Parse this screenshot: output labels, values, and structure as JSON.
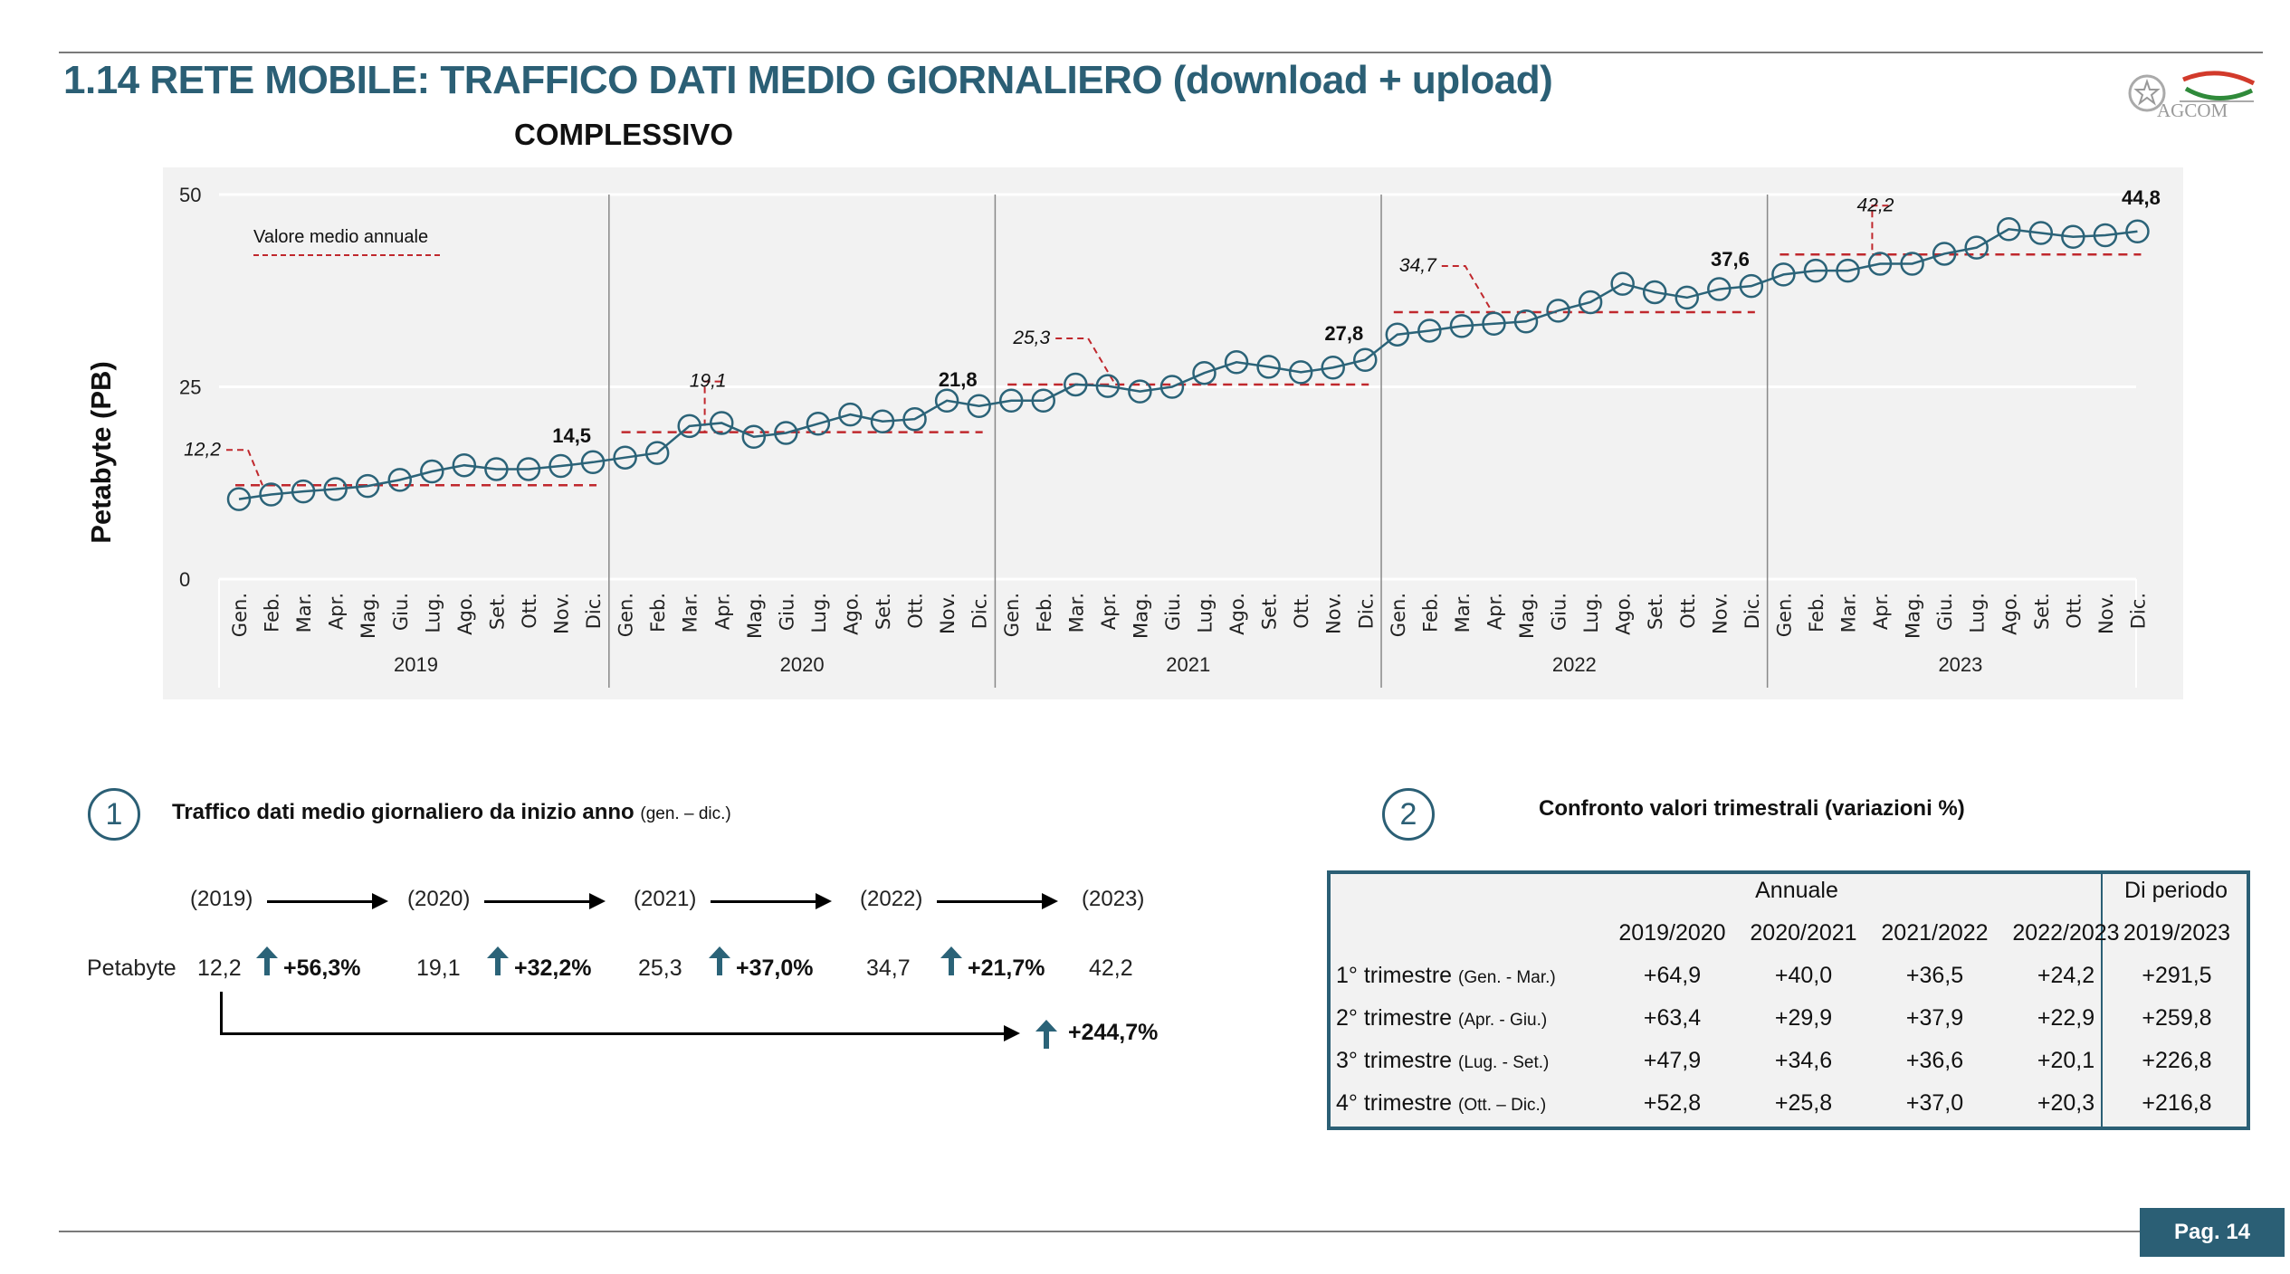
{
  "header": {
    "title": "1.14 RETE MOBILE: TRAFFICO DATI MEDIO GIORNALIERO (download + upload)",
    "subtitle": "COMPLESSIVO",
    "logo_text": "AGCOM"
  },
  "chart_data": {
    "type": "line",
    "title": "COMPLESSIVO",
    "ylabel": "Petabyte (PB)",
    "xlabel": "",
    "ylim": [
      0,
      50
    ],
    "yticks": [
      "0",
      "25",
      "50"
    ],
    "grid": true,
    "legend": {
      "label": "Valore medio annuale",
      "placement": "top-left"
    },
    "months": [
      "Gen.",
      "Feb.",
      "Mar.",
      "Apr.",
      "Mag.",
      "Giu.",
      "Lug.",
      "Ago.",
      "Set.",
      "Ott.",
      "Nov.",
      "Dic."
    ],
    "years": [
      "2019",
      "2020",
      "2021",
      "2022",
      "2023"
    ],
    "series": [
      {
        "name": "Traffico dati medio giornaliero mensile",
        "color": "#2b6378",
        "values": [
          10.4,
          11.0,
          11.4,
          11.7,
          12.1,
          12.9,
          14.0,
          14.8,
          14.3,
          14.3,
          14.7,
          15.2,
          15.8,
          16.4,
          19.9,
          20.3,
          18.5,
          19.0,
          20.2,
          21.4,
          20.5,
          20.8,
          23.2,
          22.5,
          23.2,
          23.2,
          25.3,
          25.1,
          24.4,
          25.0,
          26.8,
          28.2,
          27.6,
          26.9,
          27.5,
          28.5,
          31.8,
          32.3,
          32.9,
          33.2,
          33.5,
          34.9,
          36.0,
          38.4,
          37.3,
          36.6,
          37.7,
          38.1,
          39.6,
          40.1,
          40.1,
          41.0,
          41.0,
          42.3,
          43.1,
          45.5,
          45.0,
          44.5,
          44.7,
          45.2
        ]
      },
      {
        "name": "Valore medio annuale",
        "color": "#c0282d",
        "values": [
          12.2,
          19.1,
          25.3,
          34.7,
          42.2
        ],
        "labels": [
          "12,2",
          "19,1",
          "25,3",
          "34,7",
          "42,2"
        ]
      }
    ],
    "annotations": [
      {
        "text": "14,5",
        "at": "Dic. 2019"
      },
      {
        "text": "21,8",
        "at": "Dic. 2020"
      },
      {
        "text": "27,8",
        "at": "Dic. 2021"
      },
      {
        "text": "37,6",
        "at": "Dic. 2022"
      },
      {
        "text": "44,8",
        "at": "Dic. 2023"
      }
    ]
  },
  "section1": {
    "number": "1",
    "title": "Traffico dati medio giornaliero da inizio anno",
    "title_note": "(gen. – dic.)",
    "years": [
      "(2019)",
      "(2020)",
      "(2021)",
      "(2022)",
      "(2023)"
    ],
    "row_label": "Petabyte",
    "values": [
      "12,2",
      "19,1",
      "25,3",
      "34,7",
      "42,2"
    ],
    "changes": [
      "+56,3%",
      "+32,2%",
      "+37,0%",
      "+21,7%"
    ],
    "total_change": "+244,7%",
    "arrow_color": "#2b6378"
  },
  "section2": {
    "number": "2",
    "title": "Confronto valori trimestrali (variazioni %)",
    "group_headers": [
      "Annuale",
      "Di periodo"
    ],
    "columns": [
      "2019/2020",
      "2020/2021",
      "2021/2022",
      "2022/2023",
      "2019/2023"
    ],
    "rows": [
      {
        "label": "1° trimestre",
        "note": "(Gen. - Mar.)",
        "values": [
          "+64,9",
          "+40,0",
          "+36,5",
          "+24,2",
          "+291,5"
        ]
      },
      {
        "label": "2° trimestre",
        "note": "(Apr. - Giu.)",
        "values": [
          "+63,4",
          "+29,9",
          "+37,9",
          "+22,9",
          "+259,8"
        ]
      },
      {
        "label": "3° trimestre",
        "note": "(Lug. - Set.)",
        "values": [
          "+47,9",
          "+34,6",
          "+36,6",
          "+20,1",
          "+226,8"
        ]
      },
      {
        "label": "4° trimestre",
        "note": "(Ott. – Dic.)",
        "values": [
          "+52,8",
          "+25,8",
          "+37,0",
          "+20,3",
          "+216,8"
        ]
      }
    ]
  },
  "footer": {
    "page": "Pag. 14"
  },
  "colors": {
    "brand": "#2b5f75",
    "line": "#2b6378",
    "avg": "#c0282d",
    "chart_bg": "#f2f2f2"
  }
}
